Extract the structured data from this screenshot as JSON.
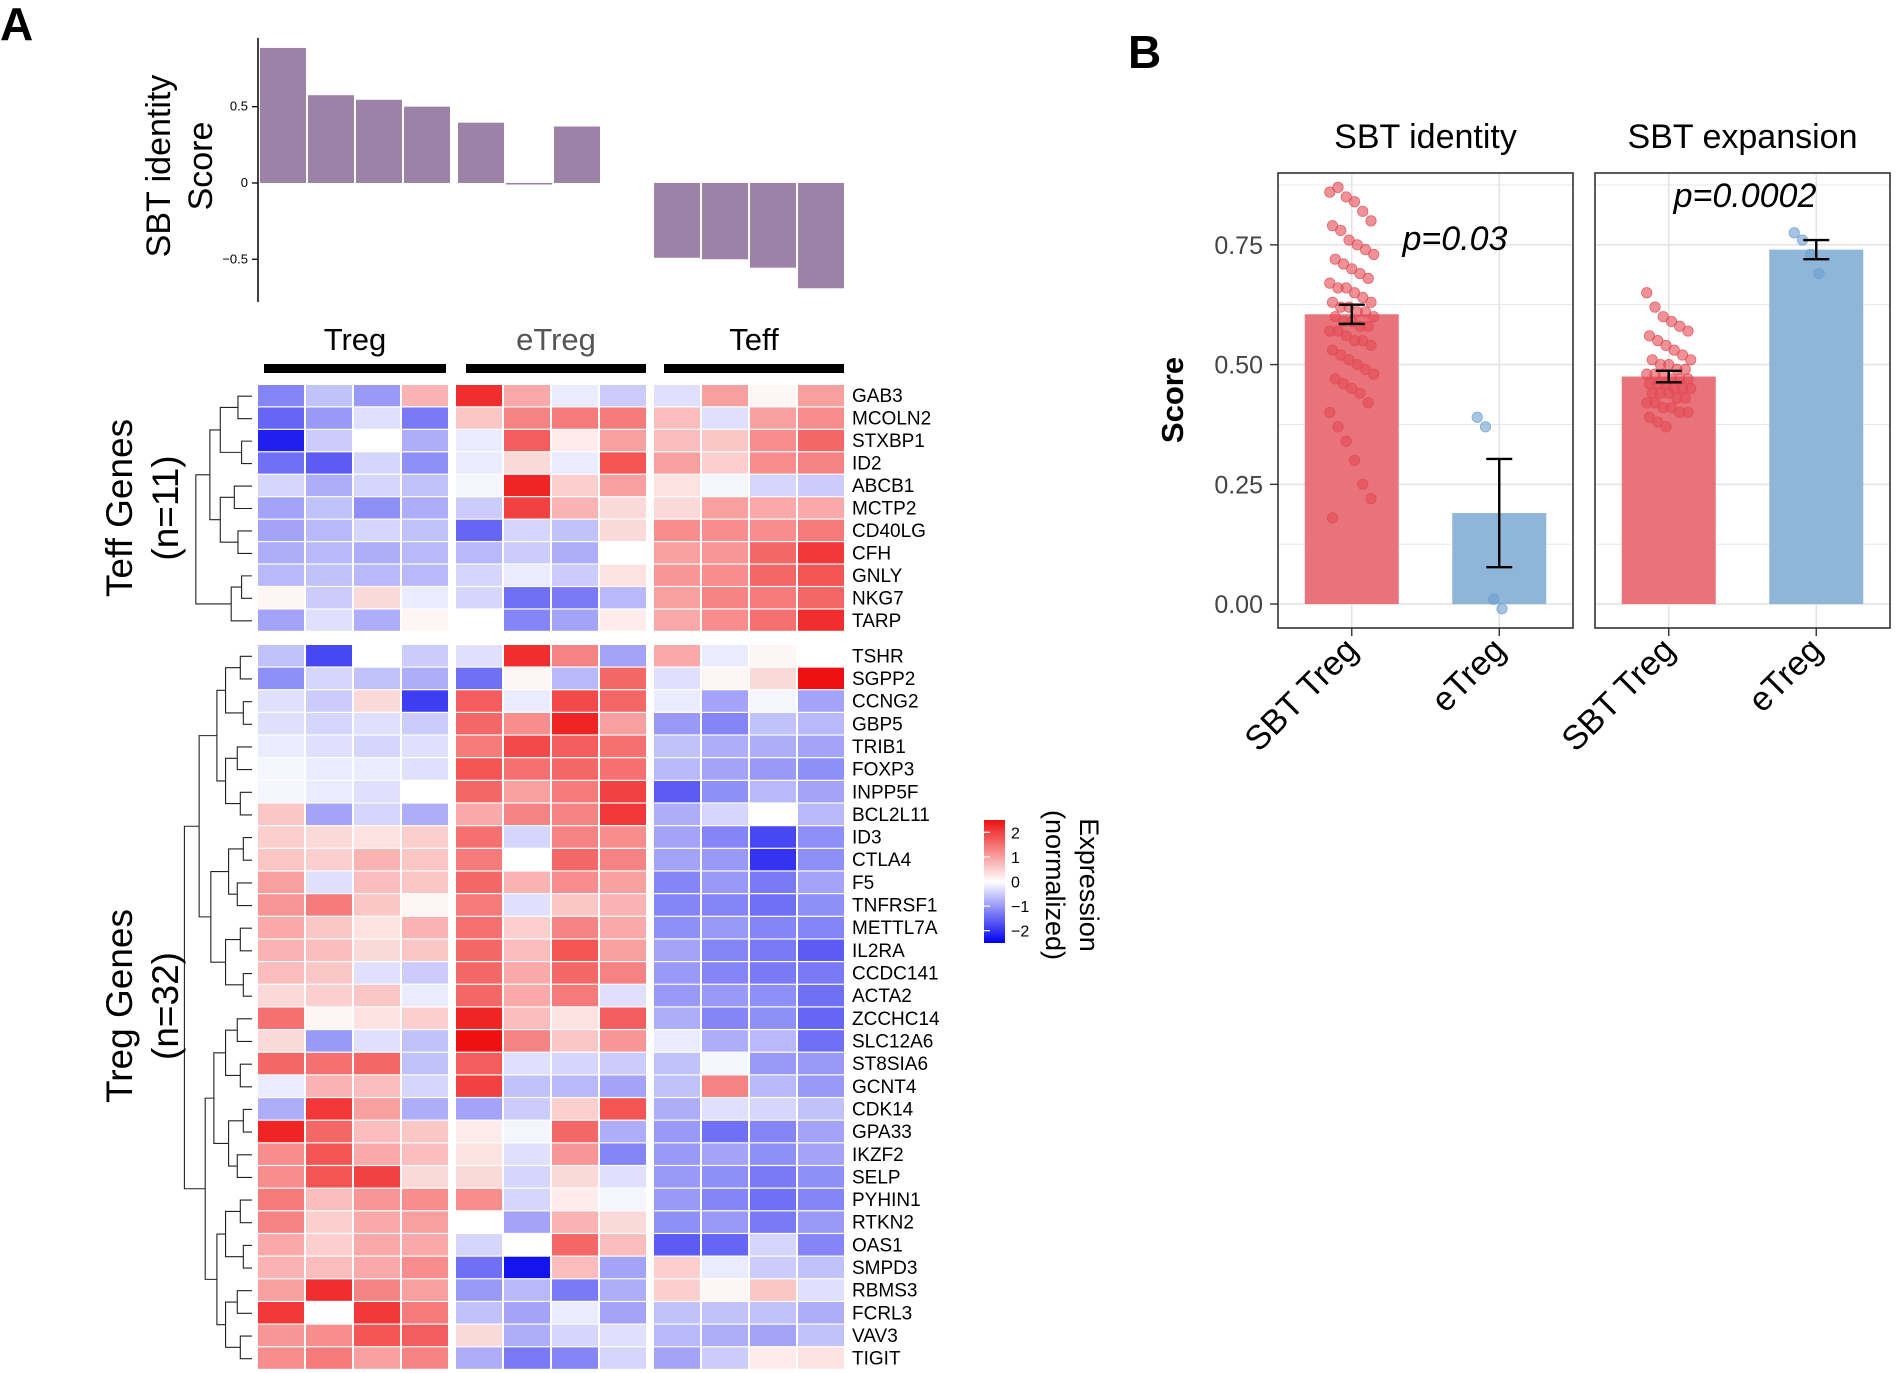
{
  "panel_labels": {
    "a": "A",
    "b": "B"
  },
  "chart_data": [
    {
      "type": "bar",
      "id": "identity-score-bars",
      "ylabel_line1": "SBT identity",
      "ylabel_line2": "Score",
      "ylim": [
        -0.78,
        0.95
      ],
      "ticks": [
        0.5,
        0,
        -0.5
      ],
      "tick_labels": [
        "0.5",
        "0",
        "−0.5"
      ],
      "values": [
        0.885,
        0.575,
        0.545,
        0.5,
        0.395,
        -0.01,
        0.37,
        -0.49,
        -0.5,
        -0.555,
        -0.69
      ],
      "bar_color": "#9b82a6"
    },
    {
      "type": "heatmap",
      "id": "expression-heatmap",
      "groups": [
        {
          "label": "Treg",
          "color": "#000000",
          "n": 4
        },
        {
          "label": "eTreg",
          "color": "#555555",
          "n": 4
        },
        {
          "label": "Teff",
          "color": "#000000",
          "n": 4
        }
      ],
      "blocks": [
        {
          "label_line1": "Teff Genes",
          "label_line2": "(n=11)"
        },
        {
          "label_line1": "Treg Genes",
          "label_line2": "(n=32)"
        }
      ],
      "teff_genes": [
        "GAB3",
        "MCOLN2",
        "STXBP1",
        "ID2",
        "ABCB1",
        "MCTP2",
        "CD40LG",
        "CFH",
        "GNLY",
        "NKG7",
        "TARP"
      ],
      "treg_genes": [
        "TSHR",
        "SGPP2",
        "CCNG2",
        "GBP5",
        "TRIB1",
        "FOXP3",
        "INPP5F",
        "BCL2L11",
        "ID3",
        "CTLA4",
        "F5",
        "TNFRSF1",
        "METTL7A",
        "IL2RA",
        "CCDC141",
        "ACTA2",
        "ZCCHC14",
        "SLC12A6",
        "ST8SIA6",
        "GCNT4",
        "CDK14",
        "GPA33",
        "IKZF2",
        "SELP",
        "PYHIN1",
        "RTKN2",
        "OAS1",
        "SMPD3",
        "RBMS3",
        "FCRL3",
        "VAV3",
        "TIGIT"
      ],
      "teff_values": [
        [
          -1.2,
          -0.6,
          -1.0,
          0.8,
          2.2,
          0.9,
          -0.2,
          -0.5,
          -0.3,
          1.0,
          0.1,
          1.0
        ],
        [
          -1.5,
          -1.0,
          -0.3,
          -1.3,
          0.6,
          1.3,
          1.4,
          1.4,
          0.7,
          -0.3,
          1.0,
          1.2
        ],
        [
          -2.2,
          -0.5,
          0.0,
          -0.8,
          -0.2,
          1.7,
          0.2,
          1.0,
          0.7,
          0.6,
          1.2,
          1.6
        ],
        [
          -1.4,
          -1.6,
          -0.4,
          -1.1,
          -0.2,
          0.4,
          -0.2,
          1.8,
          1.0,
          0.5,
          1.2,
          1.3
        ],
        [
          -0.4,
          -0.8,
          -0.4,
          -0.6,
          -0.1,
          2.3,
          0.5,
          1.0,
          0.3,
          -0.1,
          -0.4,
          -0.5
        ],
        [
          -0.9,
          -0.6,
          -1.1,
          -0.8,
          -0.5,
          2.0,
          0.8,
          0.4,
          0.4,
          1.0,
          0.9,
          0.9
        ],
        [
          -0.9,
          -0.7,
          -0.4,
          -0.6,
          -1.5,
          -0.4,
          -0.6,
          0.4,
          1.2,
          1.2,
          1.2,
          1.4
        ],
        [
          -0.8,
          -0.7,
          -0.8,
          -0.7,
          -0.7,
          -0.5,
          -0.8,
          0.0,
          1.0,
          1.1,
          1.6,
          2.1
        ],
        [
          -0.7,
          -0.6,
          -0.7,
          -0.7,
          -0.4,
          -0.2,
          -0.5,
          0.3,
          1.1,
          1.2,
          1.6,
          1.8
        ],
        [
          0.1,
          -0.5,
          0.4,
          -0.2,
          -0.4,
          -1.4,
          -1.3,
          -0.7,
          1.0,
          1.3,
          1.4,
          1.6
        ],
        [
          -0.9,
          -0.3,
          -0.8,
          0.1,
          0.0,
          -1.2,
          -0.9,
          0.2,
          0.9,
          1.2,
          1.5,
          2.2
        ]
      ],
      "treg_values": [
        [
          -0.6,
          -1.8,
          0.0,
          -0.5,
          -0.3,
          2.2,
          1.3,
          -0.9,
          0.9,
          -0.2,
          0.1,
          0.0
        ],
        [
          -1.1,
          -0.4,
          -0.6,
          -0.8,
          -1.4,
          0.1,
          -0.7,
          1.6,
          -0.3,
          0.1,
          0.4,
          2.6
        ],
        [
          -0.3,
          -0.5,
          0.4,
          -1.9,
          1.7,
          -0.2,
          1.9,
          1.6,
          -0.2,
          -0.9,
          -0.1,
          -0.9
        ],
        [
          -0.3,
          -0.4,
          -0.3,
          -0.5,
          1.6,
          1.2,
          2.3,
          1.0,
          -1.0,
          -1.2,
          -0.6,
          -0.7
        ],
        [
          -0.2,
          -0.3,
          -0.4,
          -0.3,
          1.4,
          1.9,
          1.7,
          1.5,
          -0.6,
          -0.8,
          -0.8,
          -0.9
        ],
        [
          -0.1,
          -0.2,
          -0.2,
          -0.3,
          1.8,
          1.5,
          1.6,
          1.5,
          -0.7,
          -0.9,
          -1.0,
          -1.1
        ],
        [
          -0.1,
          -0.2,
          -0.3,
          0.0,
          1.6,
          1.0,
          1.4,
          2.0,
          -1.6,
          -1.1,
          -0.7,
          -0.9
        ],
        [
          0.6,
          -0.9,
          -0.4,
          -0.8,
          0.9,
          1.3,
          1.3,
          2.1,
          -0.8,
          -0.4,
          0.0,
          -0.7
        ],
        [
          0.5,
          0.4,
          0.3,
          0.5,
          1.5,
          -0.4,
          1.3,
          1.2,
          -0.9,
          -1.2,
          -1.8,
          -1.1
        ],
        [
          0.6,
          0.5,
          0.8,
          0.6,
          1.4,
          0.0,
          1.6,
          1.3,
          -0.9,
          -1.0,
          -2.0,
          -1.1
        ],
        [
          1.0,
          -0.3,
          0.7,
          0.6,
          1.6,
          0.8,
          1.2,
          1.0,
          -1.2,
          -1.0,
          -1.3,
          -0.9
        ],
        [
          1.1,
          1.4,
          0.6,
          0.1,
          1.4,
          -0.3,
          0.6,
          0.8,
          -1.2,
          -1.2,
          -1.4,
          -1.1
        ],
        [
          0.9,
          0.6,
          0.3,
          0.8,
          1.5,
          0.5,
          1.3,
          0.9,
          -1.1,
          -1.0,
          -1.2,
          -1.2
        ],
        [
          0.8,
          0.7,
          0.4,
          0.6,
          1.6,
          0.7,
          1.8,
          1.0,
          -0.9,
          -1.2,
          -1.3,
          -1.6
        ],
        [
          0.7,
          0.6,
          -0.3,
          -0.5,
          1.6,
          0.9,
          1.6,
          1.3,
          -1.0,
          -1.2,
          -1.3,
          -1.3
        ],
        [
          0.4,
          0.5,
          0.6,
          -0.2,
          1.6,
          0.9,
          1.4,
          -0.3,
          -1.0,
          -1.0,
          -1.1,
          -1.4
        ],
        [
          1.5,
          0.1,
          0.3,
          0.5,
          2.3,
          0.7,
          0.3,
          1.7,
          -0.8,
          -1.2,
          -1.1,
          -1.5
        ],
        [
          0.4,
          -1.0,
          -0.3,
          -0.6,
          2.5,
          1.3,
          0.6,
          1.1,
          -0.2,
          -0.8,
          -0.7,
          -1.4
        ],
        [
          1.6,
          1.5,
          1.6,
          -0.6,
          1.7,
          -0.3,
          -0.4,
          -0.5,
          -0.6,
          -0.1,
          -1.0,
          -1.0
        ],
        [
          -0.2,
          0.8,
          0.7,
          -0.4,
          2.0,
          -0.6,
          -0.7,
          -0.9,
          -0.6,
          1.3,
          -0.7,
          -1.0
        ],
        [
          -0.8,
          2.1,
          1.0,
          -0.8,
          -0.9,
          -0.5,
          0.5,
          1.8,
          -0.8,
          -0.3,
          -0.4,
          -0.6
        ],
        [
          2.3,
          1.6,
          0.7,
          0.6,
          0.2,
          -0.1,
          1.6,
          -0.8,
          -1.0,
          -1.4,
          -1.2,
          -0.9
        ],
        [
          1.2,
          1.8,
          0.9,
          0.7,
          0.3,
          -0.3,
          1.1,
          -1.2,
          -1.0,
          -0.9,
          -1.1,
          -0.9
        ],
        [
          1.2,
          1.8,
          2.0,
          0.4,
          0.4,
          -0.4,
          0.4,
          -0.3,
          -1.0,
          -1.1,
          -1.3,
          -1.1
        ],
        [
          1.4,
          0.7,
          1.1,
          1.2,
          1.2,
          -0.4,
          0.2,
          -0.1,
          -1.0,
          -1.2,
          -1.4,
          -1.2
        ],
        [
          1.3,
          0.5,
          0.9,
          1.0,
          0.0,
          -0.9,
          0.8,
          0.4,
          -1.1,
          -1.0,
          -1.3,
          -1.0
        ],
        [
          0.9,
          0.5,
          0.9,
          0.9,
          -0.4,
          0.0,
          1.6,
          0.7,
          -1.6,
          -1.5,
          -0.4,
          -1.2
        ],
        [
          0.8,
          0.7,
          0.9,
          1.2,
          -1.4,
          -2.3,
          0.7,
          -0.9,
          0.5,
          -0.2,
          -0.5,
          -0.6
        ],
        [
          1.0,
          2.2,
          1.3,
          1.0,
          -1.0,
          -0.7,
          -1.3,
          -0.8,
          0.5,
          0.1,
          0.6,
          -0.3
        ],
        [
          2.1,
          0.0,
          2.1,
          1.4,
          -0.6,
          -0.9,
          -0.2,
          -0.9,
          -0.6,
          -0.6,
          -0.6,
          -0.8
        ],
        [
          1.1,
          1.2,
          1.8,
          1.7,
          0.4,
          -0.8,
          -0.4,
          -0.3,
          -0.7,
          -0.8,
          -0.9,
          -0.6
        ],
        [
          1.2,
          1.4,
          1.0,
          1.3,
          -0.8,
          -1.3,
          -1.2,
          -0.4,
          -0.9,
          -0.5,
          0.2,
          0.3
        ]
      ],
      "legend": {
        "title_line1": "Expression",
        "title_line2": "(normalized)",
        "ticks": [
          "2",
          "1",
          "0",
          "−1",
          "−2"
        ],
        "range": [
          -2.5,
          2.5
        ],
        "low_color": "#0000ee",
        "mid_color": "#ffffff",
        "high_color": "#ee1111"
      }
    },
    {
      "type": "bar",
      "id": "sbt-scores",
      "ylabel": "Score",
      "ylim": [
        -0.05,
        0.9
      ],
      "ticks": [
        0,
        0.25,
        0.5,
        0.75
      ],
      "tick_labels": [
        "0.00",
        "0.25",
        "0.50",
        "0.75"
      ],
      "categories": [
        "SBT Treg",
        "eTreg"
      ],
      "colors": [
        "#e8737a",
        "#8fb6d8"
      ],
      "point_colors": [
        "#e34a53",
        "#6a9ecf"
      ],
      "facets": [
        {
          "title": "SBT identity",
          "pvalue": "p=0.03",
          "means": [
            0.605,
            0.19
          ],
          "errors": [
            0.02,
            0.113
          ],
          "points": [
            [
              0.86,
              0.87,
              0.85,
              0.84,
              0.82,
              0.8,
              0.79,
              0.78,
              0.76,
              0.75,
              0.74,
              0.73,
              0.72,
              0.71,
              0.7,
              0.69,
              0.68,
              0.67,
              0.66,
              0.66,
              0.65,
              0.64,
              0.63,
              0.63,
              0.62,
              0.62,
              0.61,
              0.61,
              0.6,
              0.6,
              0.59,
              0.59,
              0.58,
              0.58,
              0.57,
              0.57,
              0.56,
              0.55,
              0.55,
              0.54,
              0.53,
              0.52,
              0.51,
              0.5,
              0.49,
              0.48,
              0.47,
              0.46,
              0.45,
              0.44,
              0.42,
              0.4,
              0.37,
              0.34,
              0.3,
              0.25,
              0.22,
              0.18
            ],
            [
              0.39,
              0.37,
              0.01,
              -0.01
            ]
          ]
        },
        {
          "title": "SBT expansion",
          "pvalue": "p=0.0002",
          "means": [
            0.475,
            0.74
          ],
          "errors": [
            0.012,
            0.02
          ],
          "points": [
            [
              0.65,
              0.62,
              0.6,
              0.59,
              0.58,
              0.57,
              0.56,
              0.55,
              0.54,
              0.53,
              0.52,
              0.51,
              0.51,
              0.5,
              0.5,
              0.49,
              0.49,
              0.48,
              0.48,
              0.48,
              0.47,
              0.47,
              0.47,
              0.46,
              0.46,
              0.46,
              0.45,
              0.45,
              0.45,
              0.44,
              0.44,
              0.44,
              0.43,
              0.43,
              0.42,
              0.42,
              0.41,
              0.41,
              0.4,
              0.4,
              0.39,
              0.38,
              0.37
            ],
            [
              0.775,
              0.76,
              0.73,
              0.69
            ]
          ]
        }
      ]
    }
  ]
}
